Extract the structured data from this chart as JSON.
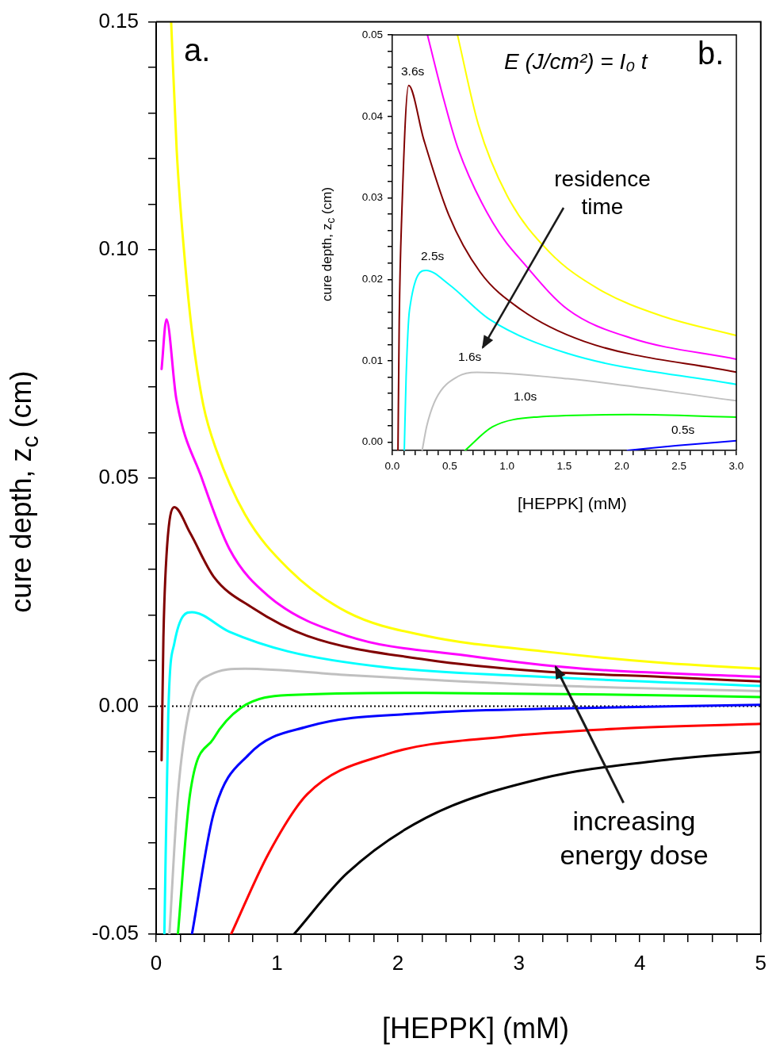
{
  "chart_data": [
    {
      "type": "line",
      "xlabel": "[HEPPK] (mM)",
      "ylabel": "cure depth, z$_{c}$ (cm)",
      "xlim": [
        0,
        5
      ],
      "ylim": [
        -0.05,
        0.15
      ],
      "xticks": [
        0,
        {
          "value": 0.2,
          "label": null
        },
        {
          "value": 0.4,
          "label": null
        },
        {
          "value": 0.6,
          "label": null
        },
        {
          "value": 0.8,
          "label": null
        },
        1,
        {
          "value": 1.2,
          "label": null
        },
        {
          "value": 1.4,
          "label": null
        },
        {
          "value": 1.6,
          "label": null
        },
        {
          "value": 1.8,
          "label": null
        },
        2,
        {
          "value": 2.2,
          "label": null
        },
        {
          "value": 2.4,
          "label": null
        },
        {
          "value": 2.6,
          "label": null
        },
        {
          "value": 2.8,
          "label": null
        },
        3,
        {
          "value": 3.2,
          "label": null
        },
        {
          "value": 3.4,
          "label": null
        },
        {
          "value": 3.6,
          "label": null
        },
        {
          "value": 3.8,
          "label": null
        },
        4,
        {
          "value": 4.2,
          "label": null
        },
        {
          "value": 4.4,
          "label": null
        },
        {
          "value": 4.6,
          "label": null
        },
        {
          "value": 4.8,
          "label": null
        },
        5
      ],
      "yticks": [
        -0.05,
        {
          "value": -0.04,
          "label": null
        },
        {
          "value": -0.03,
          "label": null
        },
        {
          "value": -0.02,
          "label": null
        },
        {
          "value": -0.01,
          "label": null
        },
        {
          "value": 0,
          "label": "0.00"
        },
        {
          "value": 0.01,
          "label": null
        },
        {
          "value": 0.02,
          "label": null
        },
        {
          "value": 0.03,
          "label": null
        },
        {
          "value": 0.04,
          "label": null
        },
        0.05,
        {
          "value": 0.06,
          "label": null
        },
        {
          "value": 0.07,
          "label": null
        },
        {
          "value": 0.08,
          "label": null
        },
        {
          "value": 0.09,
          "label": null
        },
        {
          "value": 0.1,
          "label": "0.10"
        },
        {
          "value": 0.11,
          "label": null
        },
        {
          "value": 0.12,
          "label": null
        },
        {
          "value": 0.13,
          "label": null
        },
        {
          "value": 0.14,
          "label": null
        },
        0.15
      ],
      "series": [
        {
          "color": "#ffff00",
          "x": [
            0.124,
            0.17,
            0.234,
            0.3,
            0.39,
            0.5,
            0.735,
            1.09,
            1.58,
            2.23,
            3.2,
            4.18,
            5
          ],
          "values": [
            0.15,
            0.1218,
            0.0987,
            0.0813,
            0.066,
            0.056,
            0.042,
            0.0302,
            0.0206,
            0.0154,
            0.012,
            0.0095,
            0.0082
          ]
        },
        {
          "color": "#ff00ff",
          "x": [
            0.045,
            0.085,
            0.166,
            0.377,
            0.605,
            0.93,
            1.58,
            2.56,
            3.53,
            5
          ],
          "values": [
            0.0739,
            0.0848,
            0.0675,
            0.05,
            0.0345,
            0.0241,
            0.0154,
            0.0111,
            0.0082,
            0.0064
          ]
        },
        {
          "color": "#800000",
          "x": [
            0.045,
            0.06,
            0.085,
            0.15,
            0.28,
            0.475,
            0.8,
            1.25,
            2.23,
            3.2,
            4.18,
            5
          ],
          "values": [
            -0.0119,
            0.015,
            0.0328,
            0.0436,
            0.038,
            0.0284,
            0.0215,
            0.0154,
            0.0102,
            0.0076,
            0.0064,
            0.0054
          ]
        },
        {
          "color": "#00ffff",
          "x": [
            0.068,
            0.1,
            0.15,
            0.296,
            0.605,
            1.09,
            1.9,
            3.2,
            5
          ],
          "values": [
            -0.05,
            -0.0019,
            0.0137,
            0.0206,
            0.0163,
            0.012,
            0.0085,
            0.0064,
            0.0044
          ]
        },
        {
          "color": "#c0c0c0",
          "x": [
            0.11,
            0.18,
            0.28,
            0.44,
            0.735,
            1.58,
            3.2,
            5
          ],
          "values": [
            -0.05,
            -0.0193,
            0,
            0.0068,
            0.0082,
            0.0068,
            0.0046,
            0.0033
          ]
        },
        {
          "color": "#00ff00",
          "x": [
            0.18,
            0.28,
            0.475,
            0.7,
            1.09,
            2.23,
            3.53,
            5
          ],
          "values": [
            -0.05,
            -0.0193,
            -0.0071,
            -0.0004,
            0.0024,
            0.0029,
            0.0026,
            0.002
          ]
        },
        {
          "color": "#0000ff",
          "x": [
            0.296,
            0.475,
            0.767,
            1.25,
            2.23,
            3.2,
            5
          ],
          "values": [
            -0.05,
            -0.0236,
            -0.0106,
            -0.0045,
            -0.0015,
            -0.0006,
            0.0003
          ]
        },
        {
          "color": "#ff0000",
          "x": [
            0.62,
            0.93,
            1.25,
            1.9,
            2.88,
            3.86,
            5
          ],
          "values": [
            -0.05,
            -0.0323,
            -0.0193,
            -0.0106,
            -0.0067,
            -0.0049,
            -0.0039
          ]
        },
        {
          "color": "#000000",
          "x": [
            1.14,
            1.58,
            2.23,
            3.2,
            4.18,
            5
          ],
          "values": [
            -0.05,
            -0.0366,
            -0.0245,
            -0.0158,
            -0.0119,
            -0.01
          ]
        }
      ],
      "ref_lines": [
        {
          "axis": "y",
          "value": 0,
          "color": "#000000",
          "line_style": "dotted"
        }
      ],
      "annotations": [
        "a.",
        {
          "text": "increasing energy dose",
          "x": 3.3,
          "y": 0.009
        }
      ]
    },
    {
      "type": "line",
      "xlabel": "[HEPPK] (mM)",
      "ylabel": "cure depth, z$_{c}$ (cm)",
      "xlim": [
        0,
        3
      ],
      "ylim": [
        -0.001,
        0.05
      ],
      "xticks": [
        {
          "value": 0,
          "label": "0.0"
        },
        {
          "value": 0.1,
          "label": null
        },
        {
          "value": 0.2,
          "label": null
        },
        {
          "value": 0.3,
          "label": null
        },
        {
          "value": 0.4,
          "label": null
        },
        0.5,
        {
          "value": 0.6,
          "label": null
        },
        {
          "value": 0.7,
          "label": null
        },
        {
          "value": 0.8,
          "label": null
        },
        {
          "value": 0.9,
          "label": null
        },
        {
          "value": 1,
          "label": "1.0"
        },
        {
          "value": 1.1,
          "label": null
        },
        {
          "value": 1.2,
          "label": null
        },
        {
          "value": 1.3,
          "label": null
        },
        {
          "value": 1.4,
          "label": null
        },
        1.5,
        {
          "value": 1.6,
          "label": null
        },
        {
          "value": 1.7,
          "label": null
        },
        {
          "value": 1.8,
          "label": null
        },
        {
          "value": 1.9,
          "label": null
        },
        {
          "value": 2,
          "label": "2.0"
        },
        {
          "value": 2.1,
          "label": null
        },
        {
          "value": 2.2,
          "label": null
        },
        {
          "value": 2.3,
          "label": null
        },
        {
          "value": 2.4,
          "label": null
        },
        2.5,
        {
          "value": 2.6,
          "label": null
        },
        {
          "value": 2.7,
          "label": null
        },
        {
          "value": 2.8,
          "label": null
        },
        {
          "value": 2.9,
          "label": null
        },
        {
          "value": 3,
          "label": "3.0"
        }
      ],
      "yticks": [
        {
          "value": 0,
          "label": "0.00"
        },
        {
          "value": 0.002,
          "label": null
        },
        {
          "value": 0.004,
          "label": null
        },
        {
          "value": 0.006,
          "label": null
        },
        {
          "value": 0.008,
          "label": null
        },
        0.01,
        {
          "value": 0.012,
          "label": null
        },
        {
          "value": 0.014,
          "label": null
        },
        {
          "value": 0.016,
          "label": null
        },
        {
          "value": 0.018,
          "label": null
        },
        0.02,
        {
          "value": 0.022,
          "label": null
        },
        {
          "value": 0.024,
          "label": null
        },
        {
          "value": 0.026,
          "label": null
        },
        {
          "value": 0.028,
          "label": null
        },
        0.03,
        {
          "value": 0.032,
          "label": null
        },
        {
          "value": 0.034,
          "label": null
        },
        {
          "value": 0.036,
          "label": null
        },
        {
          "value": 0.038,
          "label": null
        },
        0.04,
        {
          "value": 0.042,
          "label": null
        },
        {
          "value": 0.044,
          "label": null
        },
        {
          "value": 0.046,
          "label": null
        },
        {
          "value": 0.048,
          "label": null
        },
        0.05
      ],
      "series": [
        {
          "color": "#ffff00",
          "x": [
            0.568,
            0.75,
            1,
            1.366,
            1.8,
            2.35,
            3
          ],
          "values": [
            0.05,
            0.039,
            0.0303,
            0.0234,
            0.0188,
            0.0155,
            0.0131
          ]
        },
        {
          "color": "#ff00ff",
          "x": [
            0.306,
            0.45,
            0.574,
            0.874,
            1.175,
            1.53,
            2.08,
            3
          ],
          "values": [
            0.05,
            0.042,
            0.036,
            0.027,
            0.0215,
            0.0163,
            0.0128,
            0.0102
          ]
        },
        {
          "color": "#800000",
          "x": [
            0.049,
            0.06,
            0.082,
            0.142,
            0.273,
            0.492,
            0.765,
            1.12,
            1.67,
            3
          ],
          "values": [
            -0.001,
            0.015,
            0.0279,
            0.0438,
            0.0372,
            0.0279,
            0.0209,
            0.0163,
            0.0124,
            0.0086
          ]
        },
        {
          "color": "#00ffff",
          "x": [
            0.104,
            0.12,
            0.15,
            0.295,
            0.492,
            0.847,
            1.53,
            3
          ],
          "values": [
            -0.001,
            0.008,
            0.0163,
            0.0211,
            0.0194,
            0.0151,
            0.0109,
            0.0071
          ]
        },
        {
          "color": "#c0c0c0",
          "x": [
            0.26,
            0.3,
            0.383,
            0.574,
            0.738,
            1.53,
            3
          ],
          "values": [
            -0.001,
            0.002,
            0.0054,
            0.0081,
            0.0086,
            0.0078,
            0.0051
          ]
        },
        {
          "color": "#00ff00",
          "x": [
            0.634,
            0.874,
            1.257,
            2.08,
            3
          ],
          "values": [
            -0.001,
            0.0019,
            0.0031,
            0.0034,
            0.0031
          ]
        },
        {
          "color": "#0000ff",
          "x": [
            2.05,
            2.49,
            3
          ],
          "values": [
            -0.001,
            -0.0004,
            0.0002
          ]
        }
      ],
      "annotations": [
        "3.6s",
        "2.5s",
        "1.6s",
        "1.0s",
        "0.5s",
        "E (J/cm²) = I₀ t",
        "b.",
        "residence time"
      ]
    }
  ]
}
